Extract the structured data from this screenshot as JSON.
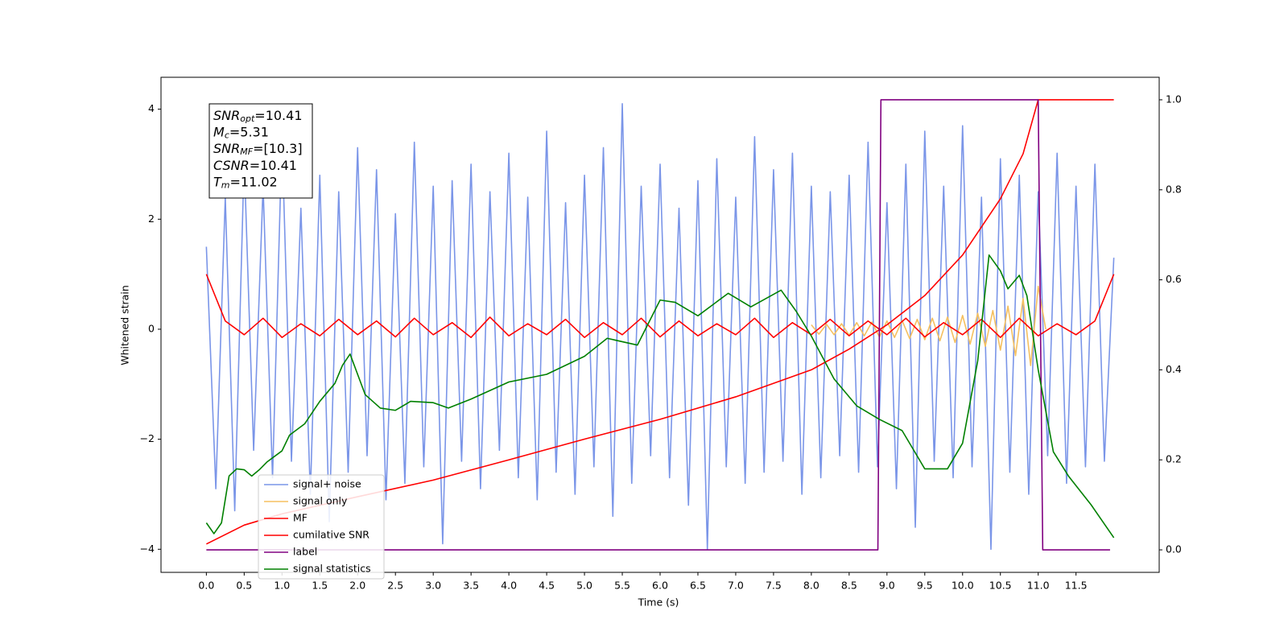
{
  "chart_data": {
    "type": "line",
    "xlabel": "Time (s)",
    "ylabel": "Whitened strain",
    "xlim": [
      -0.6,
      12.6
    ],
    "ylim": [
      -4.42,
      4.58
    ],
    "y2lim": [
      -0.05,
      1.05
    ],
    "xticks": [
      {
        "value": 0,
        "label": "0.0"
      },
      0.5,
      {
        "value": 1,
        "label": "1.0"
      },
      1.5,
      {
        "value": 2,
        "label": "2.0"
      },
      2.5,
      {
        "value": 3,
        "label": "3.0"
      },
      3.5,
      {
        "value": 4,
        "label": "4.0"
      },
      4.5,
      {
        "value": 5,
        "label": "5.0"
      },
      5.5,
      {
        "value": 6,
        "label": "6.0"
      },
      6.5,
      {
        "value": 7,
        "label": "7.0"
      },
      7.5,
      {
        "value": 8,
        "label": "8.0"
      },
      8.5,
      {
        "value": 9,
        "label": "9.0"
      },
      9.5,
      {
        "value": 10,
        "label": "10.0"
      },
      10.5,
      {
        "value": 11,
        "label": "11.0"
      },
      11.5
    ],
    "yticks": [
      {
        "value": -4,
        "label": "−4"
      },
      {
        "value": -2,
        "label": "−2"
      },
      0,
      2,
      4
    ],
    "y2ticks": [
      {
        "value": 0,
        "label": "0.0"
      },
      0.2,
      0.4,
      0.6,
      0.8,
      {
        "value": 1,
        "label": "1.0"
      }
    ],
    "annotation": [
      {
        "symbol": "SNR",
        "sub": "opt",
        "text": "=10.41"
      },
      {
        "symbol": "M",
        "sub": "c",
        "text": "=5.31"
      },
      {
        "symbol": "SNR",
        "sub": "MF",
        "text": "=[10.3]"
      },
      {
        "symbol": "CSNR",
        "sub": "",
        "text": "=10.41"
      },
      {
        "symbol": "T",
        "sub": "m",
        "text": "=11.02"
      }
    ],
    "series": [
      {
        "name": "signal+ noise",
        "color": "#7a95e8",
        "axis": "y",
        "x": [
          0,
          0.125,
          0.25,
          0.375,
          0.5,
          0.625,
          0.75,
          0.875,
          1,
          1.125,
          1.25,
          1.375,
          1.5,
          1.625,
          1.75,
          1.875,
          2,
          2.125,
          2.25,
          2.375,
          2.5,
          2.625,
          2.75,
          2.875,
          3,
          3.125,
          3.25,
          3.375,
          3.5,
          3.625,
          3.75,
          3.875,
          4,
          4.125,
          4.25,
          4.375,
          4.5,
          4.625,
          4.75,
          4.875,
          5,
          5.125,
          5.25,
          5.375,
          5.5,
          5.625,
          5.75,
          5.875,
          6,
          6.125,
          6.25,
          6.375,
          6.5,
          6.625,
          6.75,
          6.875,
          7,
          7.125,
          7.25,
          7.375,
          7.5,
          7.625,
          7.75,
          7.875,
          8,
          8.125,
          8.25,
          8.375,
          8.5,
          8.625,
          8.75,
          8.875,
          9,
          9.125,
          9.25,
          9.375,
          9.5,
          9.625,
          9.75,
          9.875,
          10,
          10.125,
          10.25,
          10.375,
          10.5,
          10.625,
          10.75,
          10.875,
          11,
          11.125,
          11.25,
          11.375,
          11.5,
          11.625,
          11.75,
          11.875,
          12
        ],
        "values": [
          1.5,
          -2.9,
          2.4,
          -3.3,
          3.1,
          -2.2,
          2.6,
          -2.7,
          3.5,
          -2.4,
          2.2,
          -3.0,
          2.8,
          -3.5,
          2.5,
          -2.6,
          3.3,
          -2.3,
          2.9,
          -3.1,
          2.1,
          -2.8,
          3.4,
          -2.5,
          2.6,
          -3.9,
          2.7,
          -2.4,
          3.0,
          -2.9,
          2.5,
          -2.2,
          3.2,
          -2.7,
          2.4,
          -3.1,
          3.6,
          -2.6,
          2.3,
          -3.0,
          2.8,
          -2.5,
          3.3,
          -3.4,
          4.1,
          -2.8,
          2.6,
          -2.3,
          3.0,
          -2.7,
          2.2,
          -3.2,
          2.7,
          -4.0,
          3.1,
          -2.5,
          2.4,
          -2.8,
          3.5,
          -2.6,
          2.9,
          -2.4,
          3.2,
          -3.0,
          2.6,
          -2.7,
          2.5,
          -2.3,
          2.8,
          -2.6,
          3.4,
          -2.5,
          2.3,
          -2.9,
          3.0,
          -3.6,
          3.6,
          -2.4,
          2.6,
          -2.7,
          3.7,
          -2.5,
          2.4,
          -4.0,
          3.1,
          -2.6,
          2.8,
          -3.0,
          2.5,
          -2.3,
          3.2,
          -2.8,
          2.6,
          -2.5,
          3.0,
          -2.4,
          1.3
        ]
      },
      {
        "name": "signal only",
        "color": "#f5c060",
        "axis": "y",
        "x": [
          8,
          8.1,
          8.2,
          8.3,
          8.4,
          8.5,
          8.6,
          8.7,
          8.8,
          8.9,
          9,
          9.1,
          9.2,
          9.3,
          9.4,
          9.5,
          9.6,
          9.7,
          9.8,
          9.9,
          10,
          10.1,
          10.2,
          10.3,
          10.4,
          10.5,
          10.6,
          10.7,
          10.8,
          10.9,
          11,
          11.1
        ],
        "values": [
          0.08,
          -0.09,
          0.09,
          -0.1,
          0.1,
          -0.11,
          0.12,
          -0.12,
          0.13,
          -0.14,
          0.15,
          -0.15,
          0.16,
          -0.17,
          0.18,
          -0.19,
          0.2,
          -0.21,
          0.22,
          -0.24,
          0.25,
          -0.27,
          0.29,
          -0.31,
          0.34,
          -0.38,
          0.42,
          -0.48,
          0.56,
          -0.66,
          0.78,
          0
        ]
      },
      {
        "name": "MF",
        "color": "#ff0000",
        "axis": "y",
        "x": [
          0,
          0.25,
          0.5,
          0.75,
          1,
          1.25,
          1.5,
          1.75,
          2,
          2.25,
          2.5,
          2.75,
          3,
          3.25,
          3.5,
          3.75,
          4,
          4.25,
          4.5,
          4.75,
          5,
          5.25,
          5.5,
          5.75,
          6,
          6.25,
          6.5,
          6.75,
          7,
          7.25,
          7.5,
          7.75,
          8,
          8.25,
          8.5,
          8.75,
          9,
          9.25,
          9.5,
          9.75,
          10,
          10.25,
          10.5,
          10.75,
          11,
          11.25,
          11.5,
          11.75,
          12
        ],
        "values": [
          1.0,
          0.15,
          -0.1,
          0.2,
          -0.15,
          0.1,
          -0.12,
          0.18,
          -0.1,
          0.15,
          -0.14,
          0.2,
          -0.1,
          0.12,
          -0.15,
          0.22,
          -0.12,
          0.1,
          -0.1,
          0.18,
          -0.15,
          0.12,
          -0.1,
          0.2,
          -0.14,
          0.15,
          -0.12,
          0.1,
          -0.1,
          0.2,
          -0.15,
          0.12,
          -0.1,
          0.18,
          -0.12,
          0.15,
          -0.1,
          0.2,
          -0.14,
          0.12,
          -0.1,
          0.18,
          -0.15,
          0.2,
          -0.12,
          0.1,
          -0.1,
          0.15,
          1.0
        ]
      },
      {
        "name": "cumilative SNR",
        "color": "#ff0000",
        "axis": "y2",
        "x": [
          0,
          0.5,
          1,
          2,
          3,
          4,
          5,
          6,
          7,
          8,
          8.5,
          9,
          9.5,
          10,
          10.5,
          10.8,
          11,
          11.02,
          12
        ],
        "values": [
          0.013,
          0.055,
          0.08,
          0.118,
          0.155,
          0.2,
          0.246,
          0.29,
          0.34,
          0.4,
          0.446,
          0.5,
          0.565,
          0.655,
          0.78,
          0.88,
          1.0,
          1.0,
          1.0
        ]
      },
      {
        "name": "label",
        "color": "#800080",
        "axis": "y2",
        "x": [
          0,
          8.88,
          8.92,
          11.0,
          11.06,
          11.95
        ],
        "values": [
          0,
          0,
          1,
          1,
          0,
          0
        ]
      },
      {
        "name": "signal statistics",
        "color": "#008000",
        "axis": "y2",
        "x": [
          0,
          0.1,
          0.2,
          0.3,
          0.4,
          0.5,
          0.6,
          0.7,
          0.8,
          1.0,
          1.1,
          1.3,
          1.5,
          1.7,
          1.8,
          1.9,
          2.0,
          2.1,
          2.3,
          2.5,
          2.7,
          3.0,
          3.2,
          3.5,
          4.0,
          4.5,
          5.0,
          5.3,
          5.7,
          6.0,
          6.2,
          6.5,
          6.9,
          7.2,
          7.6,
          7.8,
          8.0,
          8.3,
          8.6,
          8.9,
          9.2,
          9.5,
          9.8,
          10.0,
          10.2,
          10.35,
          10.5,
          10.6,
          10.75,
          10.85,
          11.0,
          11.2,
          11.4,
          11.7,
          12.0
        ],
        "values": [
          0.06,
          0.036,
          0.06,
          0.164,
          0.18,
          0.178,
          0.164,
          0.178,
          0.195,
          0.22,
          0.255,
          0.28,
          0.33,
          0.37,
          0.41,
          0.435,
          0.39,
          0.345,
          0.315,
          0.31,
          0.33,
          0.327,
          0.315,
          0.335,
          0.373,
          0.39,
          0.43,
          0.47,
          0.455,
          0.555,
          0.55,
          0.52,
          0.57,
          0.54,
          0.577,
          0.53,
          0.475,
          0.38,
          0.32,
          0.29,
          0.265,
          0.18,
          0.18,
          0.237,
          0.42,
          0.655,
          0.62,
          0.58,
          0.61,
          0.565,
          0.4,
          0.218,
          0.164,
          0.1,
          0.027
        ]
      }
    ]
  }
}
